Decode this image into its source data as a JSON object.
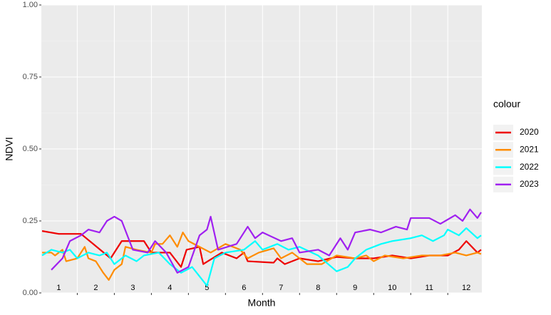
{
  "chart_data": {
    "type": "line",
    "x_label": "Month",
    "y_label": "NDVI",
    "legend_title": "colour",
    "legend": "right",
    "xlim": [
      0.03,
      11.92
    ],
    "xticks": [
      1,
      2,
      3,
      4,
      5,
      6,
      7,
      8,
      9,
      10,
      11
    ],
    "month_labels": [
      "1",
      "2",
      "3",
      "4",
      "5",
      "6",
      "7",
      "8",
      "9",
      "10",
      "11",
      "12"
    ],
    "ylim": [
      0,
      1
    ],
    "yticks": [
      {
        "value": 0,
        "label": "0.00"
      },
      {
        "value": 0.25,
        "label": "0.25"
      },
      {
        "value": 0.5,
        "label": "0.50"
      },
      {
        "value": 0.75,
        "label": "0.75"
      },
      {
        "value": 1,
        "label": "1.00"
      }
    ],
    "grid": true,
    "series": [
      {
        "name": "2020",
        "color": "#ee0000",
        "x": [
          0.05,
          0.5,
          1.1,
          1.9,
          2.2,
          2.8,
          3.0,
          3.5,
          3.8,
          3.95,
          4.3,
          4.4,
          4.9,
          5.3,
          5.5,
          5.6,
          6.3,
          6.4,
          6.6,
          7.0,
          7.5,
          8.0,
          8.5,
          9.0,
          9.5,
          10.0,
          10.5,
          11.0,
          11.3,
          11.5,
          11.8,
          11.9
        ],
        "values": [
          0.215,
          0.205,
          0.205,
          0.12,
          0.18,
          0.18,
          0.14,
          0.14,
          0.09,
          0.15,
          0.16,
          0.1,
          0.14,
          0.12,
          0.14,
          0.11,
          0.105,
          0.12,
          0.1,
          0.12,
          0.11,
          0.125,
          0.12,
          0.12,
          0.13,
          0.12,
          0.13,
          0.13,
          0.15,
          0.18,
          0.14,
          0.15
        ]
      },
      {
        "name": "2021",
        "color": "#ff8c00",
        "x": [
          0.05,
          0.3,
          0.4,
          0.6,
          0.7,
          1.0,
          1.2,
          1.3,
          1.5,
          1.7,
          1.85,
          2.0,
          2.2,
          2.3,
          2.6,
          3.0,
          3.1,
          3.3,
          3.5,
          3.7,
          3.85,
          4.0,
          4.3,
          4.6,
          5.0,
          5.4,
          5.6,
          5.9,
          6.3,
          6.5,
          6.8,
          7.2,
          7.6,
          8.0,
          8.5,
          8.8,
          9.0,
          9.3,
          9.8,
          10.3,
          10.8,
          11.2,
          11.5,
          11.8,
          11.9
        ],
        "values": [
          0.14,
          0.14,
          0.13,
          0.15,
          0.11,
          0.12,
          0.16,
          0.12,
          0.11,
          0.07,
          0.045,
          0.08,
          0.1,
          0.16,
          0.15,
          0.14,
          0.17,
          0.17,
          0.2,
          0.16,
          0.21,
          0.18,
          0.16,
          0.14,
          0.17,
          0.15,
          0.12,
          0.14,
          0.155,
          0.12,
          0.14,
          0.1,
          0.1,
          0.13,
          0.12,
          0.13,
          0.11,
          0.13,
          0.12,
          0.13,
          0.13,
          0.14,
          0.13,
          0.14,
          0.135
        ]
      },
      {
        "name": "2022",
        "color": "#00ffff",
        "x": [
          0.05,
          0.3,
          0.6,
          0.8,
          1.0,
          1.3,
          1.6,
          1.8,
          2.0,
          2.3,
          2.6,
          2.8,
          3.2,
          3.5,
          3.8,
          4.1,
          4.5,
          4.7,
          5.0,
          5.5,
          5.8,
          6.0,
          6.4,
          6.7,
          7.0,
          7.5,
          8.0,
          8.3,
          8.5,
          8.8,
          9.2,
          9.5,
          10.0,
          10.3,
          10.6,
          10.9,
          11.0,
          11.3,
          11.5,
          11.8,
          11.9
        ],
        "values": [
          0.13,
          0.15,
          0.14,
          0.15,
          0.12,
          0.14,
          0.13,
          0.14,
          0.1,
          0.13,
          0.11,
          0.13,
          0.14,
          0.1,
          0.07,
          0.09,
          0.025,
          0.12,
          0.14,
          0.15,
          0.18,
          0.15,
          0.17,
          0.15,
          0.16,
          0.13,
          0.075,
          0.09,
          0.12,
          0.15,
          0.17,
          0.18,
          0.19,
          0.2,
          0.18,
          0.2,
          0.22,
          0.2,
          0.225,
          0.19,
          0.2
        ]
      },
      {
        "name": "2023",
        "color": "#a020f0",
        "x": [
          0.3,
          0.6,
          0.8,
          1.1,
          1.3,
          1.6,
          1.8,
          2.0,
          2.2,
          2.5,
          2.9,
          3.1,
          3.4,
          3.7,
          4.0,
          4.3,
          4.5,
          4.6,
          4.8,
          5.3,
          5.6,
          5.8,
          6.0,
          6.5,
          6.8,
          7.0,
          7.5,
          7.8,
          8.1,
          8.3,
          8.5,
          8.9,
          9.2,
          9.6,
          9.9,
          10.0,
          10.5,
          10.8,
          11.2,
          11.4,
          11.6,
          11.8,
          11.9
        ],
        "values": [
          0.08,
          0.12,
          0.18,
          0.2,
          0.22,
          0.21,
          0.25,
          0.265,
          0.25,
          0.15,
          0.14,
          0.18,
          0.14,
          0.07,
          0.09,
          0.2,
          0.22,
          0.265,
          0.15,
          0.17,
          0.23,
          0.19,
          0.21,
          0.18,
          0.19,
          0.14,
          0.15,
          0.13,
          0.19,
          0.15,
          0.21,
          0.22,
          0.21,
          0.23,
          0.22,
          0.26,
          0.26,
          0.24,
          0.27,
          0.25,
          0.29,
          0.26,
          0.28
        ]
      }
    ]
  }
}
